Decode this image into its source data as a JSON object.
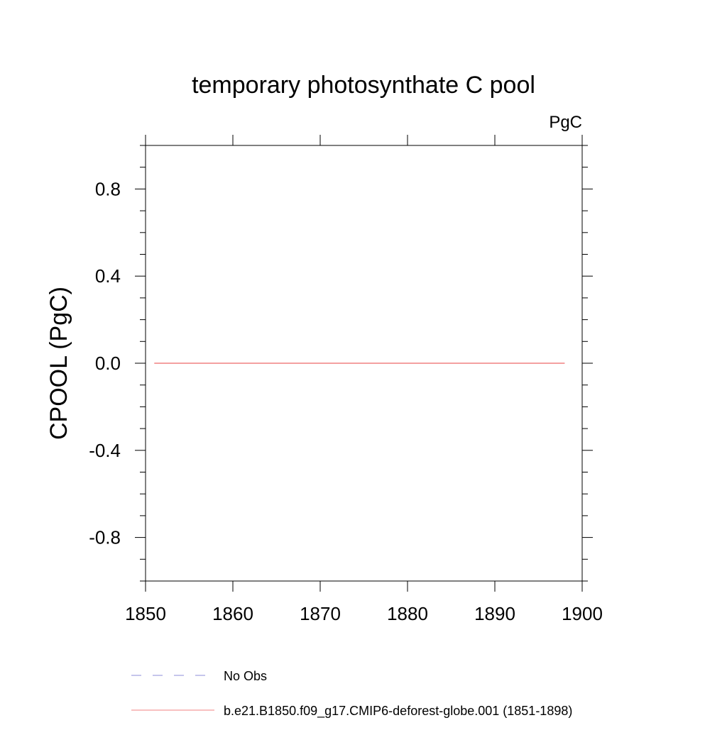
{
  "chart_data": {
    "type": "line",
    "title": "temporary photosynthate C pool",
    "units": "PgC",
    "xlabel": "",
    "ylabel": "CPOOL  (PgC)",
    "xlim": [
      1850,
      1900
    ],
    "ylim": [
      -1.0,
      1.0
    ],
    "x_ticks": [
      1850,
      1860,
      1870,
      1880,
      1890,
      1900
    ],
    "x_tick_labels": [
      "1850",
      "1860",
      "1870",
      "1880",
      "1890",
      "1900"
    ],
    "x_minor_ticks": [],
    "y_ticks": [
      -0.8,
      -0.4,
      0.0,
      0.4,
      0.8
    ],
    "y_tick_labels": [
      "-0.8",
      "-0.4",
      "0.0",
      "0.4",
      "0.8"
    ],
    "y_minor_ticks": [
      -1.0,
      -0.9,
      -0.7,
      -0.6,
      -0.5,
      -0.3,
      -0.2,
      -0.1,
      0.1,
      0.2,
      0.3,
      0.5,
      0.6,
      0.7,
      0.9,
      1.0
    ],
    "grid": false,
    "legend_position": "bottom",
    "series": [
      {
        "name": "b.e21.B1850.f09_g17.CMIP6-deforest-globe.001 (1851-1898)",
        "color": "#f08080",
        "dash": "solid",
        "x": [
          1851,
          1898
        ],
        "y": [
          0.0,
          0.0
        ]
      }
    ],
    "legend": [
      {
        "label": "No Obs",
        "color": "#8c8cd9",
        "dash": "dashed"
      },
      {
        "label": "b.e21.B1850.f09_g17.CMIP6-deforest-globe.001 (1851-1898)",
        "color": "#f08080",
        "dash": "solid"
      }
    ]
  }
}
